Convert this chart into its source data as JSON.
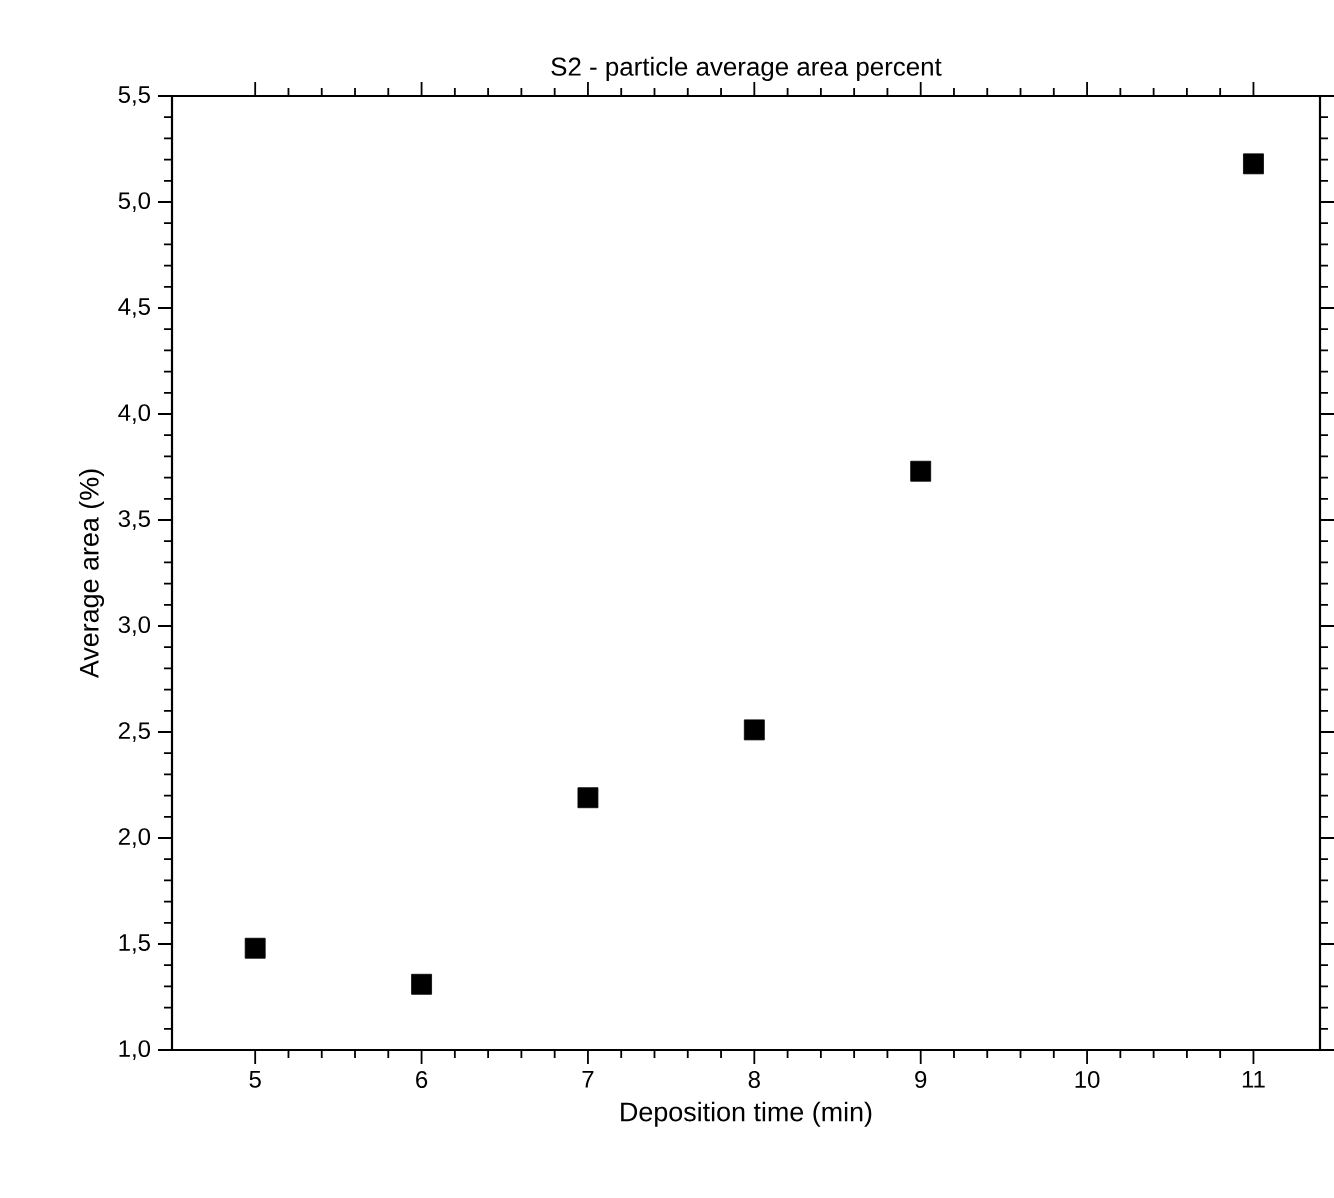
{
  "chart_data": {
    "type": "scatter",
    "title": "S2 - particle average area percent",
    "xlabel": "Deposition time (min)",
    "ylabel": "Average area (%)",
    "x": [
      5,
      6,
      7,
      8,
      9,
      11
    ],
    "series": [
      {
        "color": "#000000",
        "values": [
          1.48,
          1.31,
          2.19,
          2.51,
          3.73,
          5.18
        ]
      }
    ],
    "marker": "square",
    "xlim": [
      4.5,
      11.4
    ],
    "xticks": [
      5,
      6,
      7,
      8,
      9,
      10,
      11
    ],
    "ylim": [
      1.0,
      5.5
    ],
    "yticks": [
      {
        "value": 1.0,
        "label": "1,0"
      },
      {
        "value": 1.5,
        "label": "1,5"
      },
      {
        "value": 2.0,
        "label": "2,0"
      },
      {
        "value": 2.5,
        "label": "2,5"
      },
      {
        "value": 3.0,
        "label": "3,0"
      },
      {
        "value": 3.5,
        "label": "3,5"
      },
      {
        "value": 4.0,
        "label": "4,0"
      },
      {
        "value": 4.5,
        "label": "4,5"
      },
      {
        "value": 5.0,
        "label": "5,0"
      },
      {
        "value": 5.5,
        "label": "5,5"
      }
    ]
  }
}
